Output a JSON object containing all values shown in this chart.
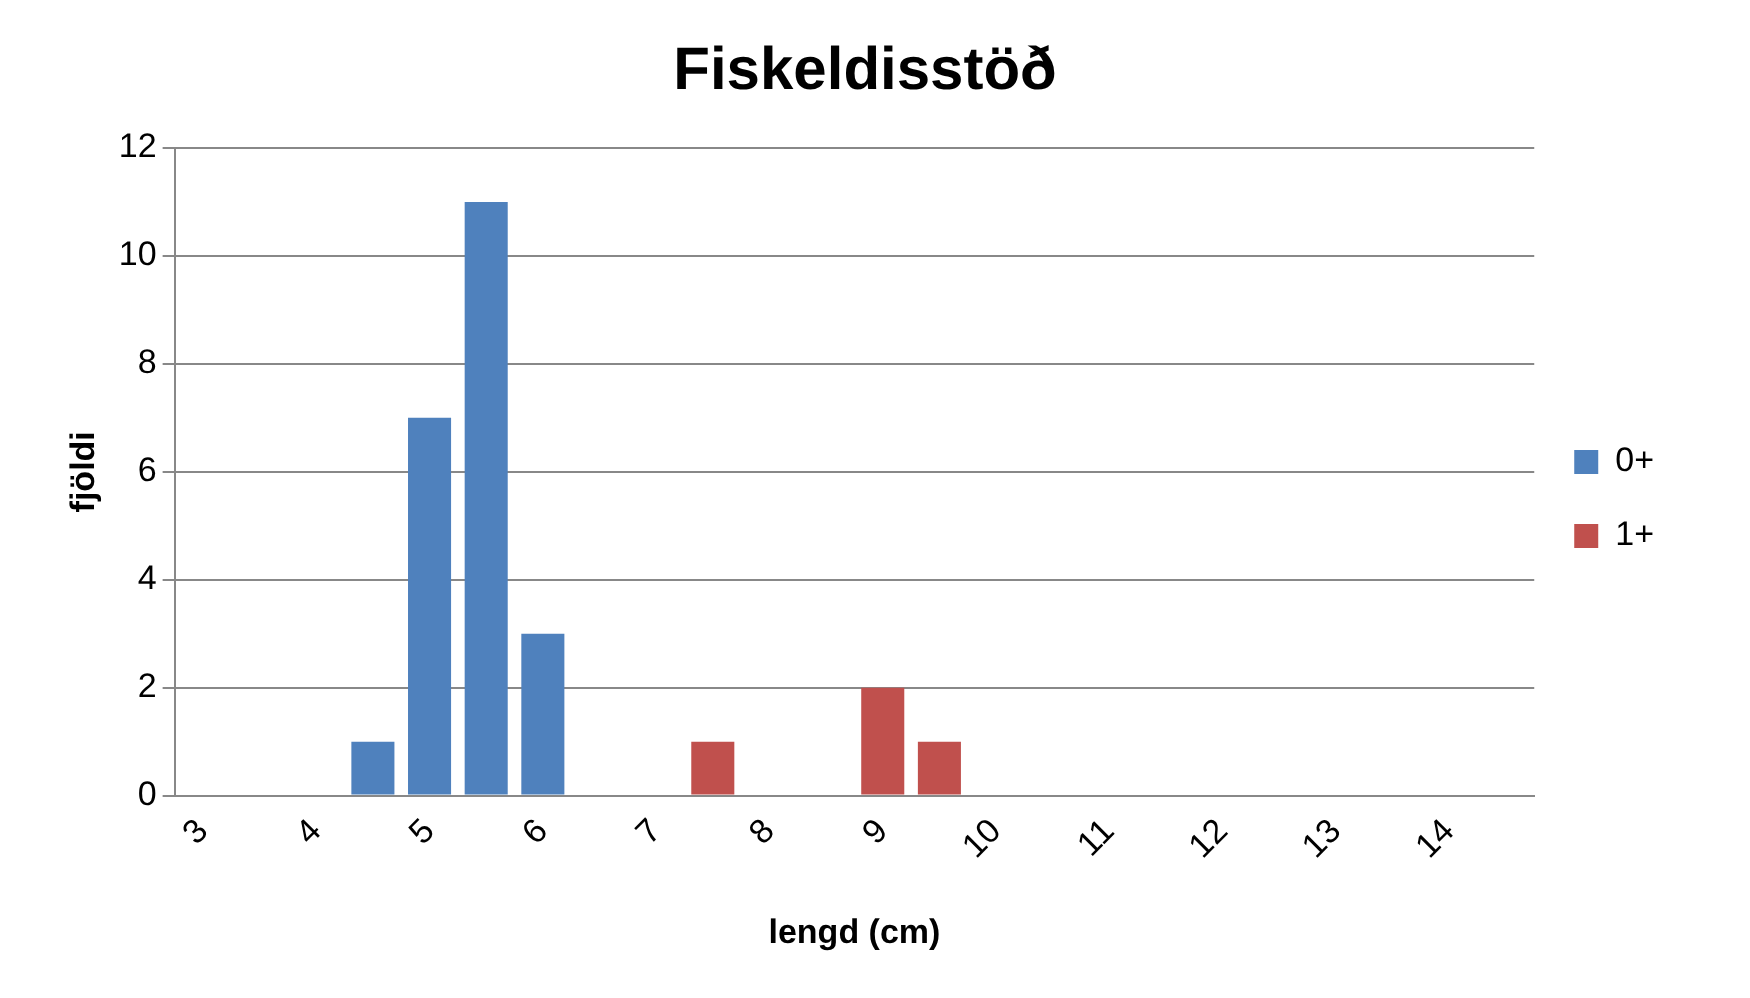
{
  "chart_data": {
    "type": "bar",
    "title": "Fiskeldisstöð",
    "xlabel": "lengd (cm)",
    "ylabel": "fjöldi",
    "categories": [
      "3",
      null,
      "4",
      null,
      "5",
      null,
      "6",
      null,
      "7",
      null,
      "8",
      null,
      "9",
      null,
      "10",
      null,
      "11",
      null,
      "12",
      null,
      "13",
      null,
      "14",
      null
    ],
    "series": [
      {
        "name": "0+",
        "color": "#4f81bd",
        "values": [
          null,
          null,
          null,
          1,
          7,
          11,
          3,
          null,
          null,
          null,
          null,
          null,
          null,
          null,
          null,
          null,
          null,
          null,
          null,
          null,
          null,
          null,
          null,
          null
        ]
      },
      {
        "name": "1+",
        "color": "#c0504d",
        "values": [
          null,
          null,
          null,
          null,
          null,
          null,
          null,
          null,
          null,
          1,
          null,
          null,
          2,
          1,
          null,
          null,
          null,
          null,
          null,
          null,
          null,
          null,
          null,
          null
        ]
      }
    ],
    "ylim": [
      0,
      12
    ],
    "yticks": [
      0,
      2,
      4,
      6,
      8,
      10,
      12
    ],
    "grid": "y",
    "legend": "right"
  }
}
